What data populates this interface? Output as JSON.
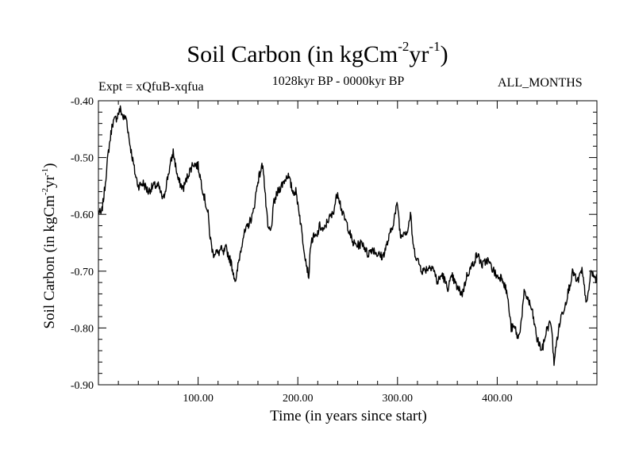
{
  "header": {
    "title_main": "Soil Carbon (in kgCm",
    "title_sup1": "-2",
    "title_mid": "yr",
    "title_sup2": "-1",
    "title_end": ")",
    "experiment": "Expt = xQfuB-xqfua",
    "period": "1028kyr BP - 0000kyr BP",
    "months": "ALL_MONTHS"
  },
  "chart_data": {
    "type": "line",
    "title": "Soil Carbon (in kgCm-2yr-1)",
    "xlabel": "Time (in years since start)",
    "ylabel": "Soil Carbon (in kgCm-2yr-1)",
    "xlim": [
      0,
      500
    ],
    "ylim": [
      -0.9,
      -0.4
    ],
    "xticks": [
      100,
      200,
      300,
      400
    ],
    "xtick_labels": [
      "100.00",
      "200.00",
      "300.00",
      "400.00"
    ],
    "yticks": [
      -0.4,
      -0.5,
      -0.6,
      -0.7,
      -0.8,
      -0.9
    ],
    "ytick_labels": [
      "-0.40",
      "-0.50",
      "-0.60",
      "-0.70",
      "-0.80",
      "-0.90"
    ],
    "line_color": "#000000",
    "series": [
      {
        "name": "Soil Carbon",
        "x": [
          0,
          3,
          6,
          10,
          14,
          18,
          22,
          25,
          28,
          31,
          34,
          37,
          40,
          45,
          50,
          55,
          60,
          65,
          70,
          75,
          80,
          85,
          90,
          95,
          100,
          105,
          110,
          112,
          115,
          118,
          120,
          123,
          125,
          128,
          130,
          133,
          135,
          138,
          140,
          145,
          150,
          155,
          160,
          165,
          167,
          170,
          173,
          176,
          180,
          185,
          190,
          195,
          198,
          201,
          205,
          208,
          211,
          213,
          216,
          219,
          222,
          226,
          230,
          235,
          240,
          245,
          250,
          255,
          260,
          265,
          270,
          275,
          280,
          285,
          290,
          295,
          300,
          303,
          306,
          310,
          313,
          316,
          320,
          325,
          330,
          335,
          340,
          345,
          350,
          355,
          360,
          365,
          370,
          375,
          380,
          385,
          390,
          395,
          400,
          405,
          410,
          414,
          418,
          421,
          424,
          427,
          430,
          435,
          440,
          445,
          450,
          454,
          457,
          460,
          464,
          468,
          472,
          476,
          480,
          485,
          490,
          494,
          497,
          500
        ],
        "values": [
          -0.595,
          -0.6,
          -0.56,
          -0.49,
          -0.44,
          -0.43,
          -0.415,
          -0.43,
          -0.43,
          -0.47,
          -0.5,
          -0.53,
          -0.55,
          -0.545,
          -0.56,
          -0.55,
          -0.55,
          -0.575,
          -0.53,
          -0.49,
          -0.54,
          -0.555,
          -0.53,
          -0.51,
          -0.515,
          -0.56,
          -0.6,
          -0.64,
          -0.67,
          -0.665,
          -0.67,
          -0.66,
          -0.67,
          -0.66,
          -0.67,
          -0.685,
          -0.7,
          -0.72,
          -0.69,
          -0.64,
          -0.62,
          -0.6,
          -0.54,
          -0.51,
          -0.56,
          -0.625,
          -0.63,
          -0.58,
          -0.56,
          -0.545,
          -0.53,
          -0.56,
          -0.56,
          -0.59,
          -0.645,
          -0.68,
          -0.71,
          -0.65,
          -0.64,
          -0.64,
          -0.62,
          -0.63,
          -0.61,
          -0.6,
          -0.56,
          -0.6,
          -0.62,
          -0.65,
          -0.655,
          -0.65,
          -0.67,
          -0.66,
          -0.67,
          -0.675,
          -0.65,
          -0.62,
          -0.58,
          -0.64,
          -0.63,
          -0.63,
          -0.6,
          -0.66,
          -0.68,
          -0.7,
          -0.695,
          -0.69,
          -0.72,
          -0.705,
          -0.73,
          -0.71,
          -0.73,
          -0.74,
          -0.705,
          -0.69,
          -0.67,
          -0.69,
          -0.68,
          -0.695,
          -0.71,
          -0.71,
          -0.74,
          -0.8,
          -0.8,
          -0.82,
          -0.79,
          -0.74,
          -0.745,
          -0.77,
          -0.82,
          -0.84,
          -0.8,
          -0.79,
          -0.86,
          -0.82,
          -0.78,
          -0.76,
          -0.73,
          -0.7,
          -0.72,
          -0.7,
          -0.76,
          -0.7,
          -0.71,
          -0.715
        ]
      }
    ]
  }
}
